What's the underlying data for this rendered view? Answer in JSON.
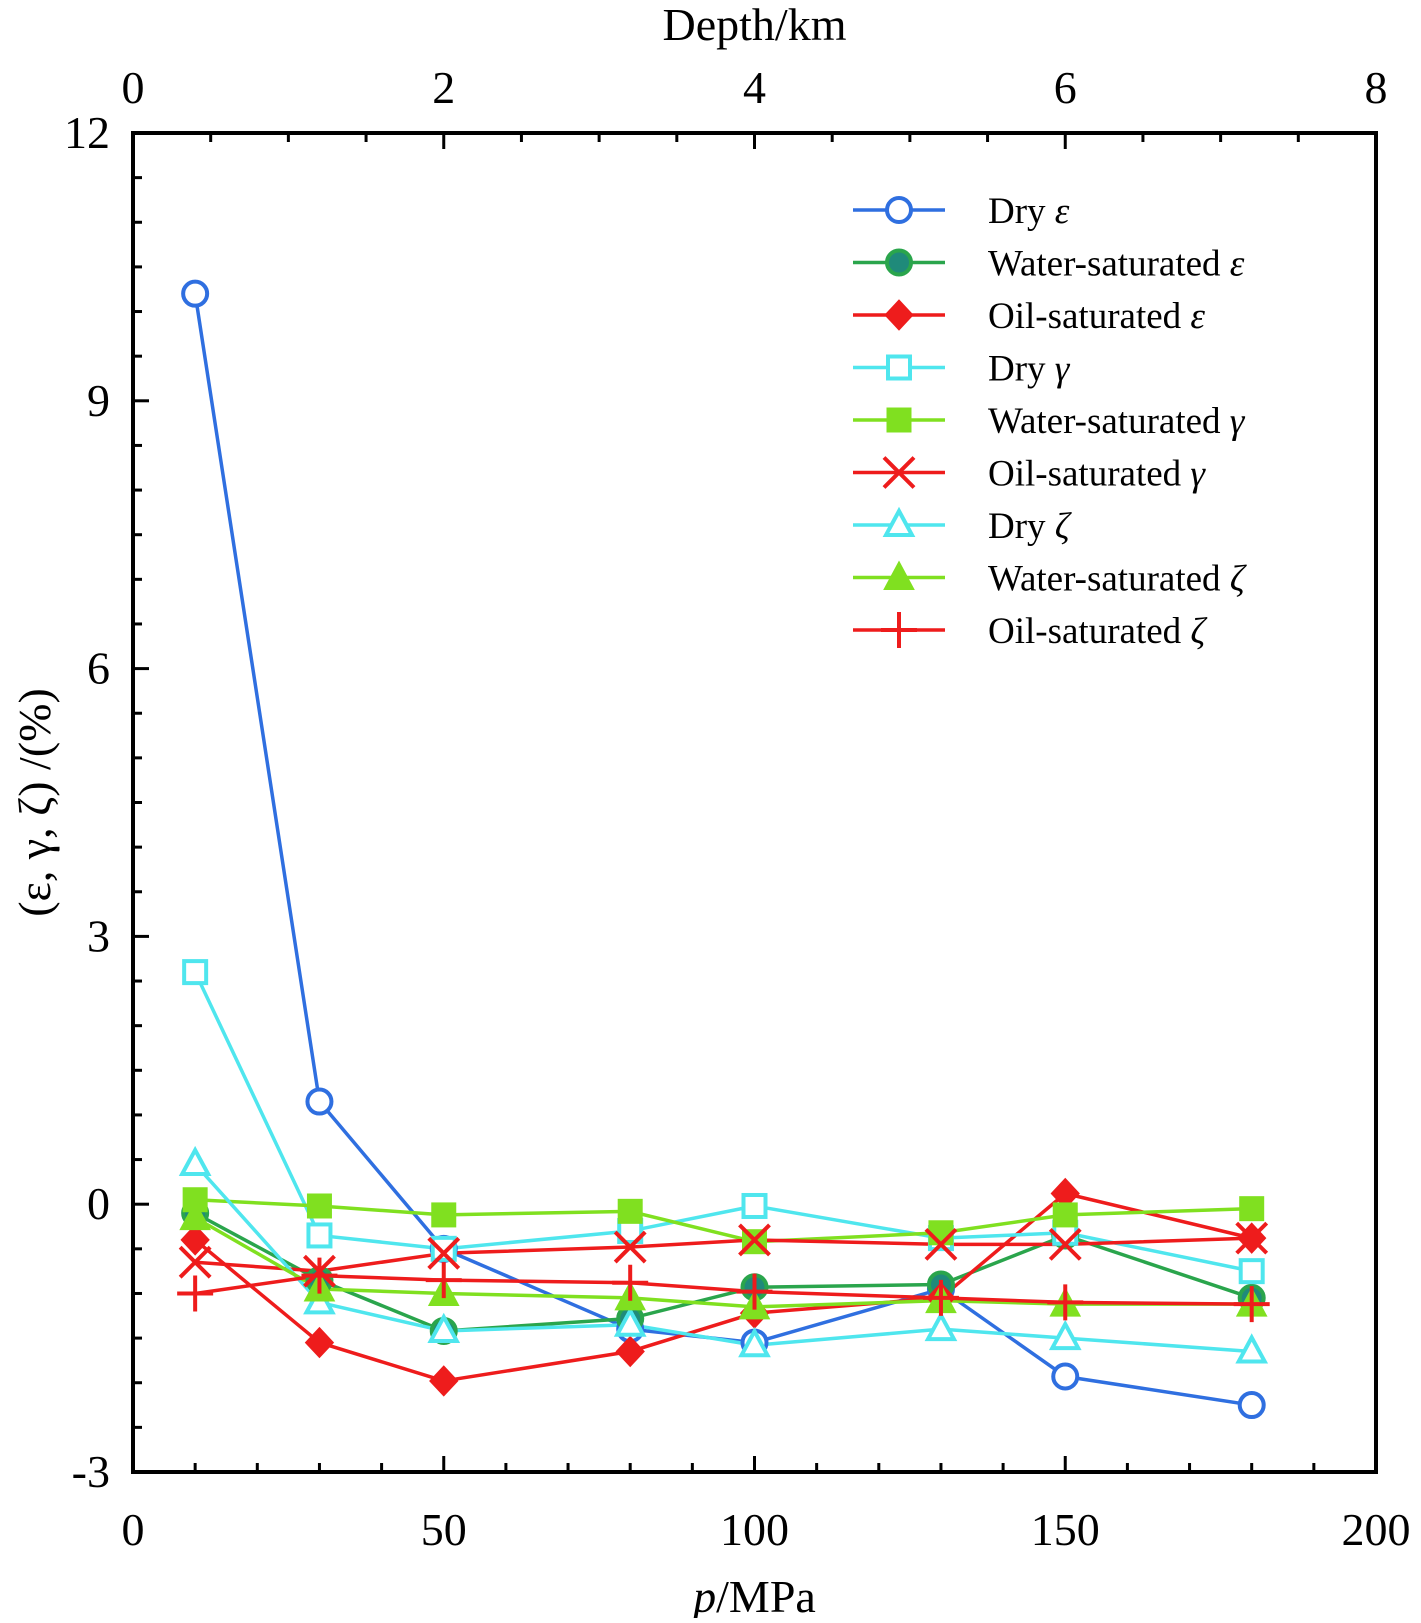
{
  "chart_data": {
    "type": "line",
    "title": "",
    "xlabel_italic": "p",
    "xlabel_rest": "/MPa",
    "top_axis_label": "Depth/km",
    "ylabel": "(ε, γ, ζ) /(%)",
    "xlim": [
      0,
      200
    ],
    "ylim": [
      -3,
      12
    ],
    "top_xlim": [
      0,
      8
    ],
    "x_ticks": [
      0,
      50,
      100,
      150,
      200
    ],
    "x_tick_labels": [
      "0",
      "50",
      "100",
      "150",
      "200"
    ],
    "y_ticks": [
      -3,
      0,
      3,
      6,
      9,
      12
    ],
    "y_tick_labels": [
      "-3",
      "0",
      "3",
      "6",
      "9",
      "12"
    ],
    "top_ticks": [
      0,
      2,
      4,
      6,
      8
    ],
    "top_tick_labels": [
      "0",
      "2",
      "4",
      "6",
      "8"
    ],
    "grid": false,
    "legend_position": "top-right",
    "x": [
      10,
      30,
      50,
      80,
      100,
      130,
      150,
      180
    ],
    "series": [
      {
        "name_base": "Dry",
        "symbol": "ε",
        "color": "#2f6fe0",
        "marker": "circle-open",
        "values": [
          10.2,
          1.15,
          -0.5,
          -1.4,
          -1.55,
          -0.95,
          -1.93,
          -2.25
        ]
      },
      {
        "name_base": "Water-saturated",
        "symbol": "ε",
        "color": "#2aa54c",
        "marker": "circle-filled",
        "values": [
          -0.1,
          -0.85,
          -1.42,
          -1.28,
          -0.93,
          -0.9,
          -0.35,
          -1.05
        ]
      },
      {
        "name_base": "Oil-saturated",
        "symbol": "ε",
        "color": "#ee1c1c",
        "marker": "diamond-filled",
        "values": [
          -0.4,
          -1.55,
          -1.98,
          -1.65,
          -1.22,
          -1.05,
          0.12,
          -0.38
        ]
      },
      {
        "name_base": "Dry",
        "symbol": "γ",
        "color": "#4fe6ee",
        "marker": "square-open",
        "values": [
          2.6,
          -0.35,
          -0.5,
          -0.3,
          -0.02,
          -0.38,
          -0.32,
          -0.75
        ]
      },
      {
        "name_base": "Water-saturated",
        "symbol": "γ",
        "color": "#80e020",
        "marker": "square-filled",
        "values": [
          0.05,
          -0.02,
          -0.12,
          -0.08,
          -0.42,
          -0.32,
          -0.12,
          -0.05
        ]
      },
      {
        "name_base": "Oil-saturated",
        "symbol": "γ",
        "color": "#ee1c1c",
        "marker": "x",
        "values": [
          -0.65,
          -0.75,
          -0.55,
          -0.48,
          -0.4,
          -0.45,
          -0.45,
          -0.38
        ]
      },
      {
        "name_base": "Dry",
        "symbol": "ζ",
        "color": "#4fe6ee",
        "marker": "triangle-open",
        "values": [
          0.45,
          -1.1,
          -1.42,
          -1.35,
          -1.58,
          -1.4,
          -1.5,
          -1.65
        ]
      },
      {
        "name_base": "Water-saturated",
        "symbol": "ζ",
        "color": "#80e020",
        "marker": "triangle-filled",
        "values": [
          -0.15,
          -0.95,
          -1.0,
          -1.05,
          -1.15,
          -1.08,
          -1.12,
          -1.12
        ]
      },
      {
        "name_base": "Oil-saturated",
        "symbol": "ζ",
        "color": "#ee1c1c",
        "marker": "plus",
        "values": [
          -1.0,
          -0.8,
          -0.85,
          -0.88,
          -0.98,
          -1.05,
          -1.1,
          -1.12
        ]
      }
    ]
  }
}
